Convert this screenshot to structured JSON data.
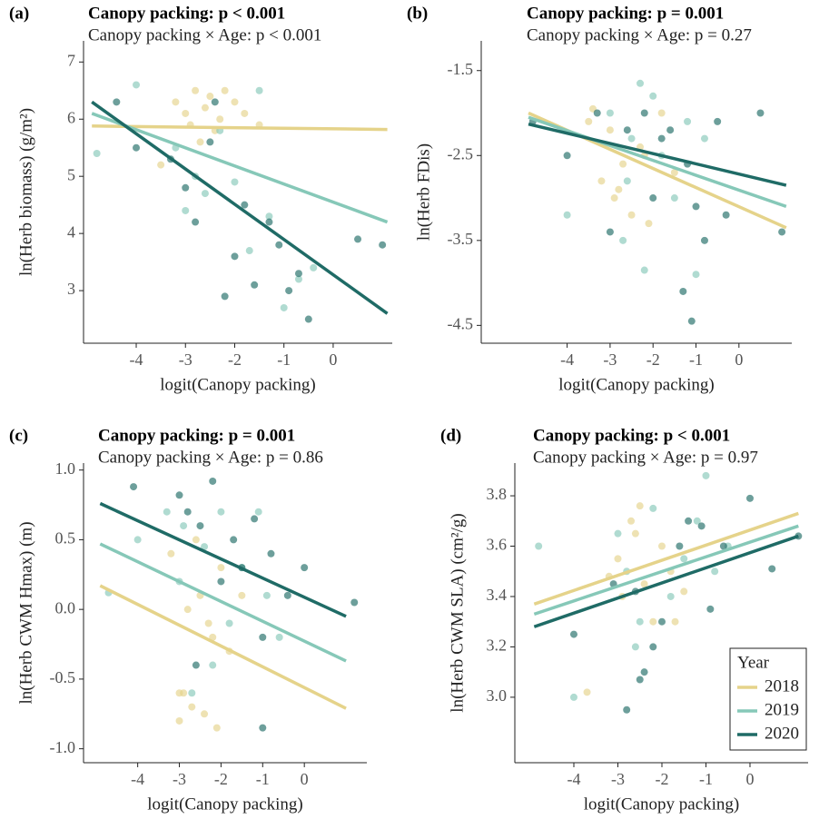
{
  "chart_data": [
    {
      "type": "scatter",
      "panel_label": "(a)",
      "title": "Canopy packing: p < 0.001",
      "subtitle": "Canopy packing × Age: p < 0.001",
      "x_label": "logit(Canopy packing)",
      "y_label": "ln(Herb biomass) (g/m²)",
      "xlim": [
        -5.07,
        1.2
      ],
      "ylim": [
        2.08,
        7.37
      ],
      "xticks": [
        -4,
        -3,
        -2,
        -1,
        0
      ],
      "yticks": [
        3,
        4,
        5,
        6,
        7
      ],
      "series": [
        {
          "color": "#e5d38a",
          "x": [
            -3.2,
            -3.0,
            -2.9,
            -2.8,
            -2.6,
            -2.5,
            -2.4,
            -2.3,
            -2.2,
            -2.0,
            -1.8,
            -1.5,
            -3.5,
            -2.7
          ],
          "values": [
            6.3,
            6.1,
            5.9,
            6.5,
            6.2,
            6.4,
            5.8,
            6.0,
            6.5,
            6.3,
            6.1,
            5.9,
            5.2,
            5.6
          ],
          "fit": {
            "x": [
              -4.9,
              1.1
            ],
            "values": [
              5.88,
              5.82
            ]
          }
        },
        {
          "color": "#86c8b8",
          "x": [
            -4.8,
            -4.0,
            -3.2,
            -3.0,
            -2.6,
            -2.3,
            -2.0,
            -1.7,
            -1.5,
            -1.3,
            -1.0,
            -0.7,
            -0.4,
            -2.8
          ],
          "values": [
            5.4,
            6.6,
            5.5,
            4.4,
            4.7,
            5.8,
            4.9,
            3.7,
            6.5,
            4.3,
            2.7,
            3.2,
            3.4,
            5.0
          ],
          "fit": {
            "x": [
              -4.9,
              1.1
            ],
            "values": [
              6.1,
              4.2
            ]
          }
        },
        {
          "color": "#1f6b66",
          "x": [
            -4.4,
            -4.0,
            -3.3,
            -3.0,
            -2.8,
            -2.5,
            -2.2,
            -2.0,
            -1.8,
            -1.6,
            -1.3,
            -1.1,
            -0.9,
            -0.7,
            -0.5,
            0.5,
            1.0,
            -2.4
          ],
          "values": [
            6.3,
            5.5,
            5.3,
            4.8,
            4.2,
            5.6,
            2.9,
            3.6,
            4.5,
            3.1,
            4.2,
            3.8,
            3.0,
            3.3,
            2.5,
            3.9,
            3.8,
            6.3
          ],
          "fit": {
            "x": [
              -4.9,
              1.1
            ],
            "values": [
              6.3,
              2.6
            ]
          }
        }
      ]
    },
    {
      "type": "scatter",
      "panel_label": "(b)",
      "title": "Canopy packing: p = 0.001",
      "subtitle": "Canopy packing × Age: p = 0.27",
      "x_label": "logit(Canopy packing)",
      "y_label": "ln(Herb FDis)",
      "xlim": [
        -6.0,
        1.23
      ],
      "ylim": [
        -4.71,
        -1.15
      ],
      "xticks": [
        -4,
        -3,
        -2,
        -1,
        0
      ],
      "yticks": [
        -4.5,
        -3.5,
        -2.5,
        -1.5
      ],
      "series": [
        {
          "color": "#e5d38a",
          "x": [
            -3.5,
            -3.2,
            -3.0,
            -2.9,
            -2.7,
            -2.5,
            -2.3,
            -2.1,
            -1.8,
            -1.5,
            -3.4,
            -2.8,
            -2.2
          ],
          "values": [
            -2.1,
            -2.8,
            -2.2,
            -3.0,
            -2.6,
            -3.2,
            -2.4,
            -3.3,
            -2.0,
            -2.7,
            -1.95,
            -2.9,
            -2.5
          ],
          "fit": {
            "x": [
              -4.9,
              1.1
            ],
            "values": [
              -2.0,
              -3.35
            ]
          }
        },
        {
          "color": "#86c8b8",
          "x": [
            -4.0,
            -3.0,
            -2.7,
            -2.5,
            -2.3,
            -2.2,
            -2.0,
            -1.8,
            -1.5,
            -1.2,
            -1.0,
            -0.8,
            -2.6
          ],
          "values": [
            -3.2,
            -2.0,
            -3.5,
            -2.3,
            -1.65,
            -3.85,
            -1.8,
            -2.5,
            -3.0,
            -2.1,
            -3.9,
            -2.3,
            -2.8
          ],
          "fit": {
            "x": [
              -4.9,
              1.1
            ],
            "values": [
              -2.05,
              -3.1
            ]
          }
        },
        {
          "color": "#1f6b66",
          "x": [
            -4.8,
            -4.0,
            -3.3,
            -3.0,
            -2.6,
            -2.2,
            -2.0,
            -1.6,
            -1.3,
            -1.1,
            -1.0,
            -0.8,
            -0.5,
            -0.3,
            0.5,
            1.0,
            -1.8,
            -1.2
          ],
          "values": [
            -2.1,
            -2.5,
            -2.0,
            -3.4,
            -2.2,
            -2.0,
            -3.0,
            -2.2,
            -4.1,
            -4.45,
            -3.1,
            -3.5,
            -2.1,
            -3.2,
            -2.0,
            -3.4,
            -2.3,
            -2.6
          ],
          "fit": {
            "x": [
              -4.9,
              1.1
            ],
            "values": [
              -2.13,
              -2.85
            ]
          }
        }
      ]
    },
    {
      "type": "scatter",
      "panel_label": "(c)",
      "title": "Canopy packing: p = 0.001",
      "subtitle": "Canopy packing × Age: p = 0.86",
      "x_label": "logit(Canopy packing)",
      "y_label": "ln(Herb CWM Hmax) (m)",
      "xlim": [
        -5.3,
        1.5
      ],
      "ylim": [
        -1.1,
        1.05
      ],
      "xticks": [
        -4,
        -3,
        -2,
        -1,
        0
      ],
      "yticks": [
        {
          "value": -1,
          "label": "-1.0"
        },
        -0.5,
        {
          "value": 0,
          "label": "0.0"
        },
        0.5,
        {
          "value": 1,
          "label": "1.0"
        }
      ],
      "series": [
        {
          "color": "#e5d38a",
          "x": [
            -3.0,
            -2.9,
            -2.7,
            -2.5,
            -2.3,
            -2.1,
            -2.0,
            -3.2,
            -2.8,
            -2.4,
            -2.2,
            -1.8,
            -1.5,
            -3.0,
            -2.6
          ],
          "values": [
            -0.8,
            -0.6,
            -0.7,
            0.1,
            -0.1,
            -0.85,
            0.3,
            0.4,
            0.0,
            -0.75,
            -0.2,
            -0.3,
            0.1,
            -0.6,
            0.5
          ],
          "fit": {
            "x": [
              -4.9,
              1.0
            ],
            "values": [
              0.17,
              -0.71
            ]
          }
        },
        {
          "color": "#86c8b8",
          "x": [
            -4.7,
            -4.0,
            -3.3,
            -3.0,
            -2.7,
            -2.4,
            -2.0,
            -1.8,
            -1.5,
            -1.1,
            -0.9,
            -0.6,
            -2.9,
            -2.2
          ],
          "values": [
            0.12,
            0.5,
            0.7,
            0.2,
            -0.6,
            0.45,
            0.7,
            -0.1,
            0.3,
            0.7,
            0.1,
            -0.2,
            0.6,
            -0.4
          ],
          "fit": {
            "x": [
              -4.9,
              1.0
            ],
            "values": [
              0.47,
              -0.37
            ]
          }
        },
        {
          "color": "#1f6b66",
          "x": [
            -4.1,
            -3.0,
            -2.8,
            -2.5,
            -2.2,
            -2.0,
            -1.7,
            -1.5,
            -1.2,
            -1.0,
            -0.8,
            -0.4,
            0.0,
            1.2,
            -1.0,
            -2.6
          ],
          "values": [
            0.88,
            0.82,
            0.7,
            0.6,
            0.92,
            0.2,
            0.5,
            0.3,
            0.65,
            -0.85,
            0.4,
            0.1,
            0.3,
            0.05,
            -0.2,
            -0.4
          ],
          "fit": {
            "x": [
              -4.9,
              1.0
            ],
            "values": [
              0.76,
              -0.05
            ]
          }
        }
      ]
    },
    {
      "type": "scatter",
      "panel_label": "(d)",
      "title": "Canopy packing: p < 0.001",
      "subtitle": "Canopy packing × Age: p = 0.97",
      "x_label": "logit(Canopy packing)",
      "y_label": "ln(Herb CWM SLA) (cm²/g)",
      "xlim": [
        -5.34,
        1.32
      ],
      "ylim": [
        2.74,
        3.93
      ],
      "xticks": [
        -4,
        -3,
        -2,
        -1,
        0
      ],
      "yticks": [
        {
          "value": 3,
          "label": "3.0"
        },
        3.2,
        3.4,
        3.6,
        3.8
      ],
      "legend": "bottom-right",
      "legend_title": "Year",
      "series": [
        {
          "name": "2018",
          "color": "#e5d38a",
          "x": [
            -3.7,
            -3.0,
            -2.9,
            -2.7,
            -2.5,
            -2.4,
            -2.2,
            -2.0,
            -1.8,
            -1.5,
            -2.6,
            -3.2,
            -1.7
          ],
          "values": [
            3.02,
            3.55,
            3.4,
            3.7,
            3.76,
            3.45,
            3.3,
            3.6,
            3.5,
            3.42,
            3.65,
            3.48,
            3.3
          ],
          "fit": {
            "x": [
              -4.9,
              1.1
            ],
            "values": [
              3.37,
              3.73
            ]
          }
        },
        {
          "name": "2019",
          "color": "#86c8b8",
          "x": [
            -4.8,
            -4.0,
            -3.0,
            -2.8,
            -2.5,
            -2.2,
            -1.8,
            -1.5,
            -1.2,
            -1.0,
            -0.8,
            -0.5,
            -2.6
          ],
          "values": [
            3.6,
            3.0,
            3.65,
            3.5,
            3.3,
            3.75,
            3.4,
            3.55,
            3.7,
            3.88,
            3.5,
            3.6,
            3.2
          ],
          "fit": {
            "x": [
              -4.9,
              1.1
            ],
            "values": [
              3.33,
              3.68
            ]
          }
        },
        {
          "name": "2020",
          "color": "#1f6b66",
          "x": [
            -4.0,
            -3.1,
            -2.8,
            -2.6,
            -2.4,
            -2.2,
            -2.0,
            -1.6,
            -1.4,
            -1.1,
            -0.9,
            -0.6,
            0.0,
            0.5,
            1.1,
            -2.5
          ],
          "values": [
            3.25,
            3.45,
            2.95,
            3.42,
            3.1,
            3.2,
            3.3,
            3.6,
            3.7,
            3.68,
            3.35,
            3.6,
            3.79,
            3.51,
            3.64,
            3.07
          ],
          "fit": {
            "x": [
              -4.9,
              1.1
            ],
            "values": [
              3.28,
              3.64
            ]
          }
        }
      ]
    }
  ]
}
